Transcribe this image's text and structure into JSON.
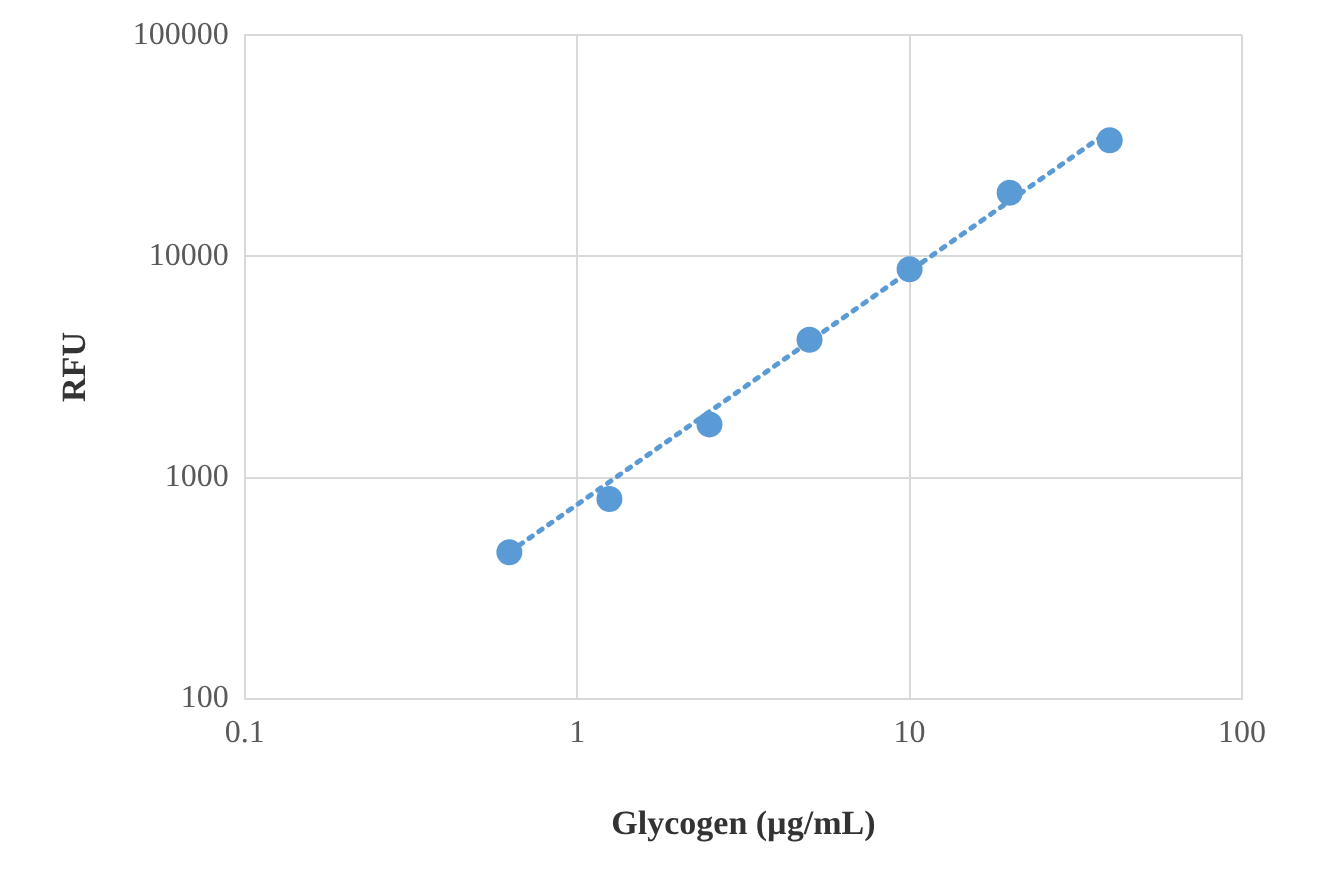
{
  "chart_data": {
    "type": "scatter",
    "xlabel": "Glycogen (µg/mL)",
    "ylabel": "RFU",
    "log": "xy",
    "grid": true,
    "legend": false,
    "xlim": [
      0.1,
      100
    ],
    "xticks": [
      0.1,
      1,
      10,
      100
    ],
    "ylim": [
      100,
      100000
    ],
    "yticks": [
      100,
      1000,
      10000,
      100000
    ],
    "series": [
      {
        "color": "#5b9bd5",
        "marker": "circle",
        "x": [
          0.625,
          1.25,
          2.5,
          5,
          10,
          20,
          40
        ],
        "values": [
          460,
          800,
          1740,
          4200,
          8750,
          19400,
          33500
        ]
      },
      {
        "type": "line",
        "color": "#5b9bd5",
        "marker": "none",
        "line_style": "dotted",
        "x": [
          0.625,
          40
        ],
        "values": [
          460,
          37000
        ]
      }
    ]
  }
}
